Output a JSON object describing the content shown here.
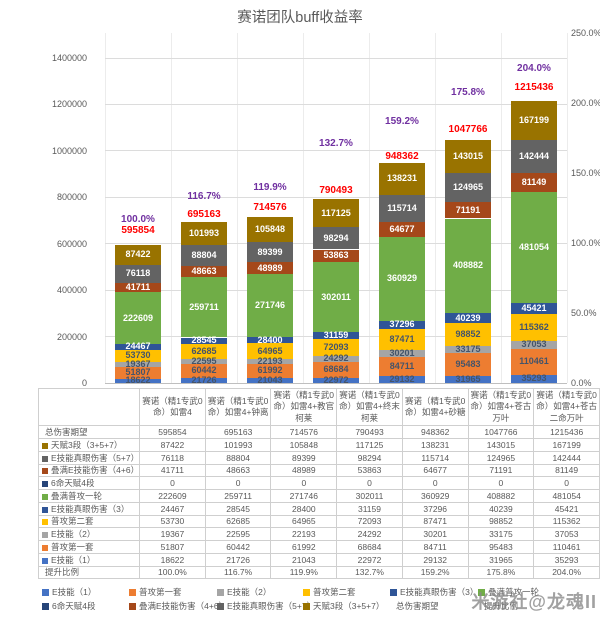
{
  "watermark": "米游社@龙魂II",
  "colors": {
    "grid": "#DCDCDC",
    "axis_line": "#BFBFBF",
    "axis_text": "#595959",
    "total_label": "#FF0000",
    "ratio_label": "#7030A0",
    "dark_value_label": "#44546A",
    "light_value_label": "#FFFFFF",
    "table_border": "#CFCFCF",
    "table_text": "#595959"
  },
  "chart_data": {
    "type": "bar",
    "stacked": true,
    "grid": true,
    "legend_position": "bottom",
    "title": "赛诺团队buff收益率",
    "categories": [
      "赛诺（精1专武0命）如雷4",
      "赛诺（精1专武0命）如雷4+钟离",
      "赛诺（精1专武0命）如雷4+教官柯莱",
      "赛诺（精1专武0命）如雷4+终末柯莱",
      "赛诺（精1专武0命）如雷4+砂糖",
      "赛诺（精1专武0命）如雷4+苍古万叶",
      "赛诺（精1专武0命）如雷4+苍古二命万叶"
    ],
    "series": [
      {
        "name": "E技能（1）",
        "color": "#4472C4",
        "label_color": "dark",
        "values": [
          18622,
          21726,
          21043,
          22972,
          29132,
          31965,
          35293
        ]
      },
      {
        "name": "普攻第一套",
        "color": "#ED7D31",
        "label_color": "dark",
        "values": [
          51807,
          60442,
          61992,
          68684,
          84711,
          95483,
          110461
        ]
      },
      {
        "name": "E技能（2）",
        "color": "#A5A5A5",
        "label_color": "dark",
        "values": [
          19367,
          22595,
          22193,
          24292,
          30201,
          33175,
          37053
        ]
      },
      {
        "name": "普攻第二套",
        "color": "#FFC000",
        "label_color": "dark",
        "values": [
          53730,
          62685,
          64965,
          72093,
          87471,
          98852,
          115362
        ]
      },
      {
        "name": "E技能真眼伤害（3）",
        "color": "#2F5597",
        "label_color": "light",
        "values": [
          24467,
          28545,
          28400,
          31159,
          37296,
          40239,
          45421
        ]
      },
      {
        "name": "叠满普攻一轮",
        "color": "#70AD47",
        "label_color": "light",
        "values": [
          222609,
          259711,
          271746,
          302011,
          360929,
          408882,
          481054
        ]
      },
      {
        "name": "6命天赋4段",
        "color": "#264478",
        "label_color": "light",
        "values": [
          0,
          0,
          0,
          0,
          0,
          0,
          0
        ]
      },
      {
        "name": "叠满E技能伤害（4+6）",
        "color": "#A5481A",
        "label_color": "light",
        "values": [
          41711,
          48663,
          48989,
          53863,
          64677,
          71191,
          81149
        ]
      },
      {
        "name": "E技能真眼伤害（5+7）",
        "color": "#636363",
        "label_color": "light",
        "values": [
          76118,
          88804,
          89399,
          98294,
          115714,
          124965,
          142444
        ]
      },
      {
        "name": "天赋3段（3+5+7）",
        "color": "#997300",
        "label_color": "light",
        "values": [
          87422,
          101993,
          105848,
          117125,
          138231,
          143015,
          167199
        ]
      }
    ],
    "totals": {
      "name": "总伤害期望",
      "values": [
        595854,
        695163,
        714576,
        790493,
        948362,
        1047766,
        1215436
      ]
    },
    "ratio": {
      "name": "提升比例",
      "values": [
        "100.0%",
        "116.7%",
        "119.9%",
        "132.7%",
        "159.2%",
        "175.8%",
        "204.0%"
      ]
    },
    "y_axis_left": {
      "ticks": [
        0,
        200000,
        400000,
        600000,
        800000,
        1000000,
        1200000,
        1400000
      ],
      "min": 0,
      "max": 1400000
    },
    "y_axis_right": {
      "ticks": [
        "0.0%",
        "50.0%",
        "100.0%",
        "150.0%",
        "200.0%",
        "250.0%"
      ],
      "min_pct": 0,
      "max_pct": 250
    }
  }
}
